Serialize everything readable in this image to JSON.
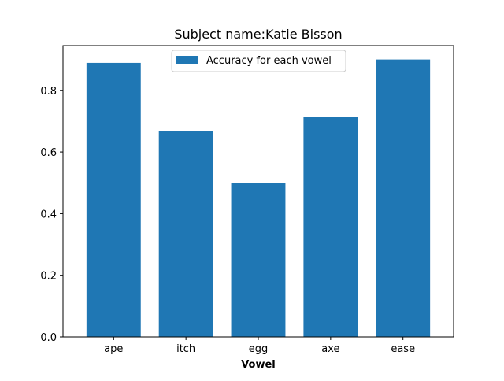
{
  "chart_data": {
    "type": "bar",
    "title": "Subject name:Katie Bisson",
    "xlabel": "Vowel",
    "ylabel": "",
    "categories": [
      "ape",
      "itch",
      "egg",
      "axe",
      "ease"
    ],
    "series": [
      {
        "name": "Accuracy for each vowel",
        "values": [
          0.889,
          0.667,
          0.5,
          0.714,
          0.9
        ],
        "color": "#1f77b4"
      }
    ],
    "ylim": [
      0,
      0.945
    ],
    "yticks": [
      0.0,
      0.2,
      0.4,
      0.6,
      0.8
    ],
    "ytick_labels": [
      "0.0",
      "0.2",
      "0.4",
      "0.6",
      "0.8"
    ],
    "grid": false,
    "legend_position": "top-center"
  }
}
